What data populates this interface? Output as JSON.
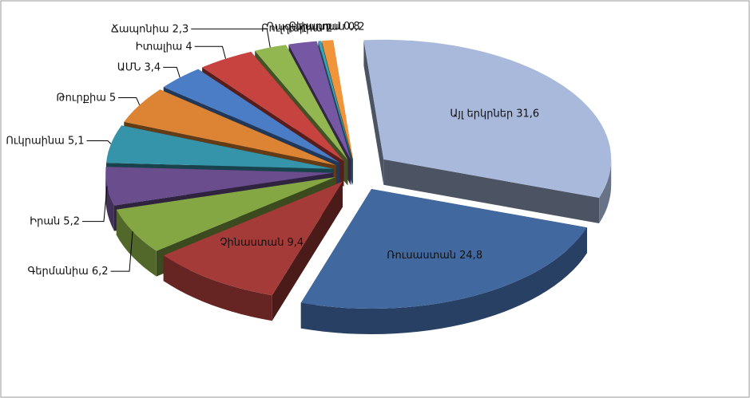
{
  "chart_data": {
    "type": "pie",
    "categories": [
      "Այլ երկրներ",
      "Ռուսաստան",
      "Չինաստան",
      "Գերմանիա",
      "Իրան",
      "Ուկրաինա",
      "Թուրքիա",
      "ԱՄՆ",
      "Իտալիա",
      "Ճապոնիա",
      "Բուլղարիա",
      "Ղազախստան",
      "Բելառուս"
    ],
    "values": [
      31.6,
      24.8,
      9.4,
      6.2,
      5.2,
      5.1,
      5,
      3.4,
      4,
      2.3,
      2,
      0.2,
      0.8
    ],
    "value_labels": [
      "31,6",
      "24,8",
      "9,4",
      "6,2",
      "5,2",
      "5,1",
      "5",
      "3,4",
      "4",
      "2,3",
      "2",
      "0,2",
      "0,8"
    ],
    "colors": [
      "#a9b9dc",
      "#41689f",
      "#a43b38",
      "#84a744",
      "#694d8d",
      "#3694aa",
      "#dc8433",
      "#4a7dc6",
      "#c6433f",
      "#92b650",
      "#7657a3",
      "#3aa1b9",
      "#f0953a"
    ]
  }
}
